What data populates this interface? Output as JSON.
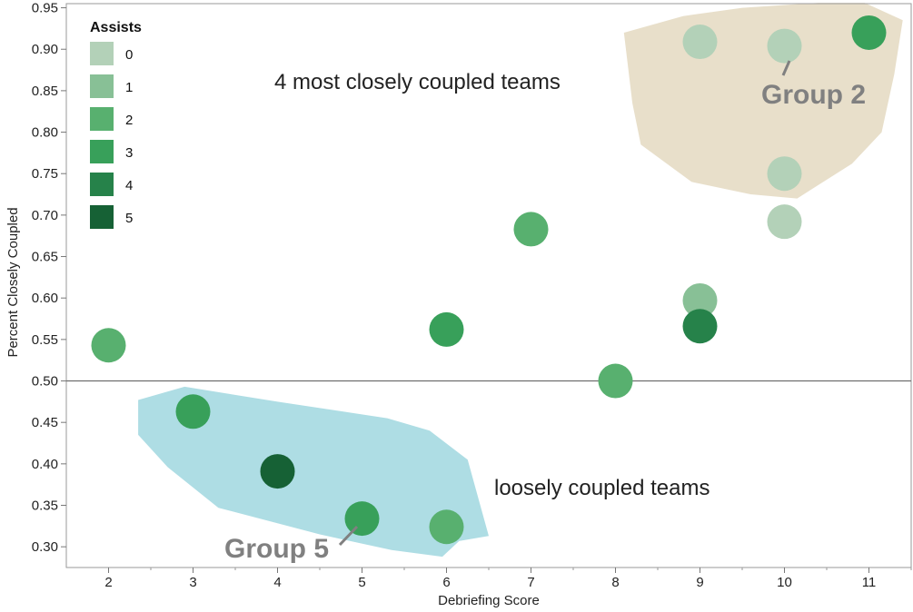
{
  "chart_data": {
    "type": "scatter",
    "xlabel": "Debriefing Score",
    "ylabel": "Percent Closely Coupled",
    "xlim": [
      1.5,
      11.5
    ],
    "ylim": [
      0.275,
      0.955
    ],
    "x_ticks": [
      2,
      3,
      4,
      5,
      6,
      7,
      8,
      9,
      10,
      11
    ],
    "x_tick_labels": [
      "2",
      "3",
      "4",
      "5",
      "6",
      "7",
      "8",
      "9",
      "10",
      "11"
    ],
    "y_ticks": [
      0.3,
      0.35,
      0.4,
      0.45,
      0.5,
      0.55,
      0.6,
      0.65,
      0.7,
      0.75,
      0.8,
      0.85,
      0.9,
      0.95
    ],
    "y_tick_labels": [
      "0.30",
      "0.35",
      "0.40",
      "0.45",
      "0.50",
      "0.55",
      "0.60",
      "0.65",
      "0.70",
      "0.75",
      "0.80",
      "0.85",
      "0.90",
      "0.95"
    ],
    "reference_line_y": 0.5,
    "grid": false,
    "legend": {
      "title": "Assists",
      "placement": "top-left",
      "entries": [
        {
          "label": "0",
          "color": "#b3d1b8"
        },
        {
          "label": "1",
          "color": "#88c096"
        },
        {
          "label": "2",
          "color": "#58b06f"
        },
        {
          "label": "3",
          "color": "#38a05a"
        },
        {
          "label": "4",
          "color": "#26824a"
        },
        {
          "label": "5",
          "color": "#166135"
        }
      ]
    },
    "points": [
      {
        "x": 2,
        "y": 0.543,
        "assists": 2
      },
      {
        "x": 3,
        "y": 0.463,
        "assists": 3
      },
      {
        "x": 4,
        "y": 0.391,
        "assists": 5
      },
      {
        "x": 5,
        "y": 0.334,
        "assists": 3
      },
      {
        "x": 6,
        "y": 0.324,
        "assists": 2
      },
      {
        "x": 6,
        "y": 0.562,
        "assists": 3
      },
      {
        "x": 7,
        "y": 0.683,
        "assists": 2
      },
      {
        "x": 8,
        "y": 0.5,
        "assists": 2
      },
      {
        "x": 9,
        "y": 0.597,
        "assists": 1
      },
      {
        "x": 9,
        "y": 0.566,
        "assists": 4
      },
      {
        "x": 9,
        "y": 0.909,
        "assists": 0
      },
      {
        "x": 10,
        "y": 0.904,
        "assists": 0
      },
      {
        "x": 10,
        "y": 0.75,
        "assists": 0
      },
      {
        "x": 10,
        "y": 0.692,
        "assists": 0
      },
      {
        "x": 11,
        "y": 0.92,
        "assists": 3
      }
    ],
    "regions": [
      {
        "name": "Group 2",
        "color": "#e8dfca",
        "polygon": [
          [
            10.4,
            0.956
          ],
          [
            10.95,
            0.956
          ],
          [
            11.4,
            0.935
          ],
          [
            11.3,
            0.87
          ],
          [
            11.15,
            0.8
          ],
          [
            10.8,
            0.762
          ],
          [
            10.15,
            0.72
          ],
          [
            9.6,
            0.725
          ],
          [
            8.9,
            0.74
          ],
          [
            8.3,
            0.785
          ],
          [
            8.2,
            0.835
          ],
          [
            8.1,
            0.92
          ],
          [
            8.8,
            0.94
          ],
          [
            9.5,
            0.95
          ]
        ]
      },
      {
        "name": "Group 5",
        "color": "#aedde4",
        "polygon": [
          [
            2.35,
            0.477
          ],
          [
            2.9,
            0.493
          ],
          [
            4.0,
            0.475
          ],
          [
            5.3,
            0.455
          ],
          [
            5.8,
            0.44
          ],
          [
            6.25,
            0.405
          ],
          [
            6.5,
            0.313
          ],
          [
            6.15,
            0.307
          ],
          [
            5.95,
            0.288
          ],
          [
            5.35,
            0.296
          ],
          [
            4.5,
            0.315
          ],
          [
            3.3,
            0.347
          ],
          [
            2.7,
            0.396
          ],
          [
            2.35,
            0.435
          ]
        ]
      }
    ],
    "annotations": [
      {
        "text": "4 most closely coupled teams"
      },
      {
        "text": "loosely coupled teams"
      },
      {
        "text": "Group 2"
      },
      {
        "text": "Group 5"
      }
    ]
  }
}
